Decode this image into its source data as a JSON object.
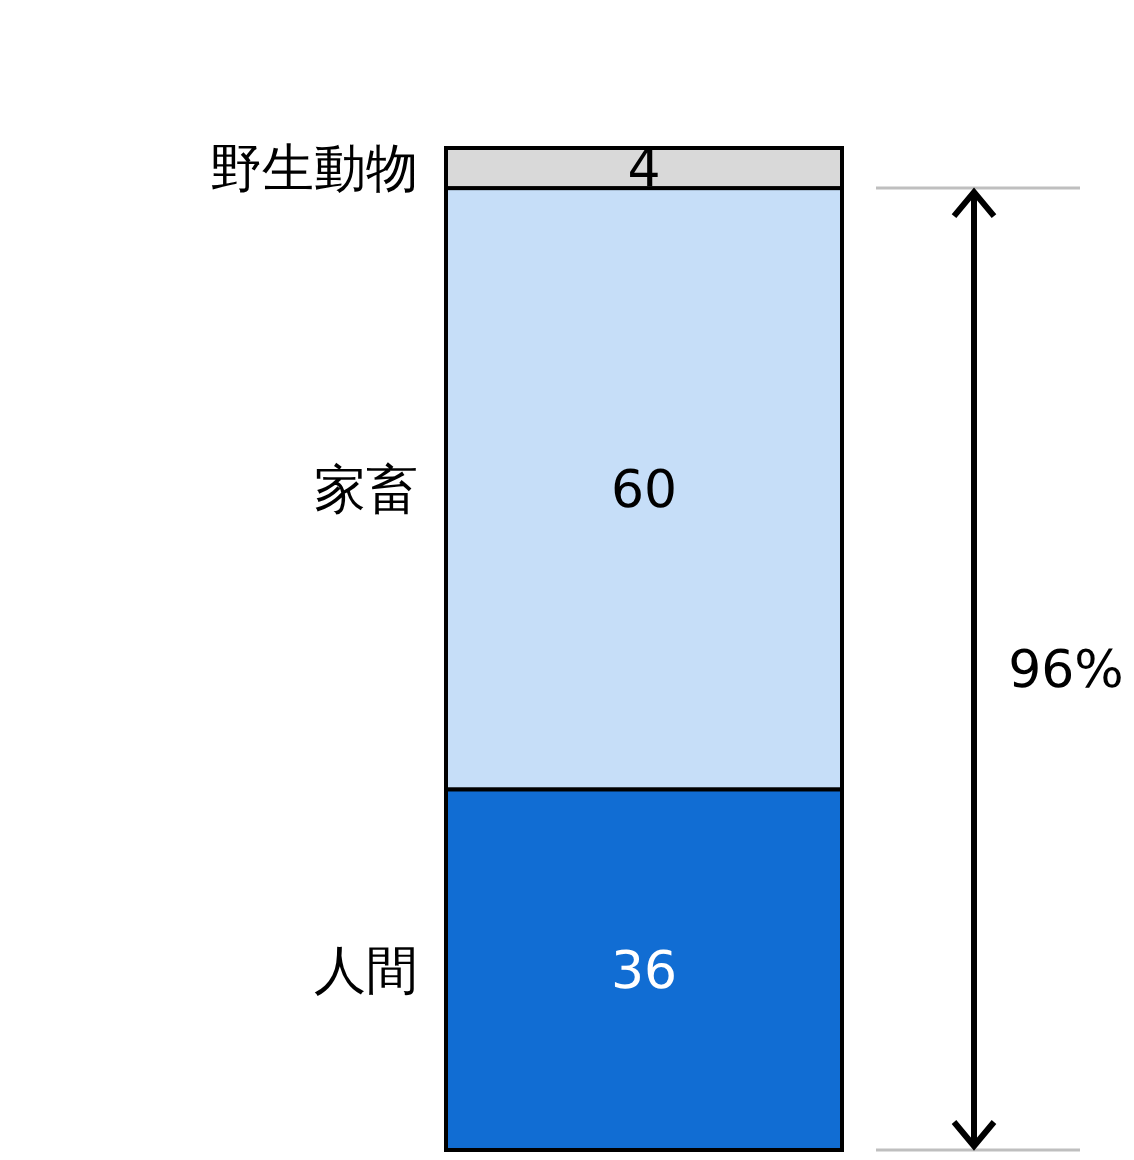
{
  "chart_data": {
    "type": "bar",
    "stacked": true,
    "categories": [
      null
    ],
    "data_labels": true,
    "series": [
      {
        "name": "人間",
        "color": "#116dd3",
        "values": [
          36
        ]
      },
      {
        "name": "家畜",
        "color": "#c6def8",
        "values": [
          60
        ]
      },
      {
        "name": "野生動物",
        "color": "#d9d9d9",
        "values": [
          4
        ]
      }
    ],
    "annotations": [
      "96%"
    ]
  }
}
